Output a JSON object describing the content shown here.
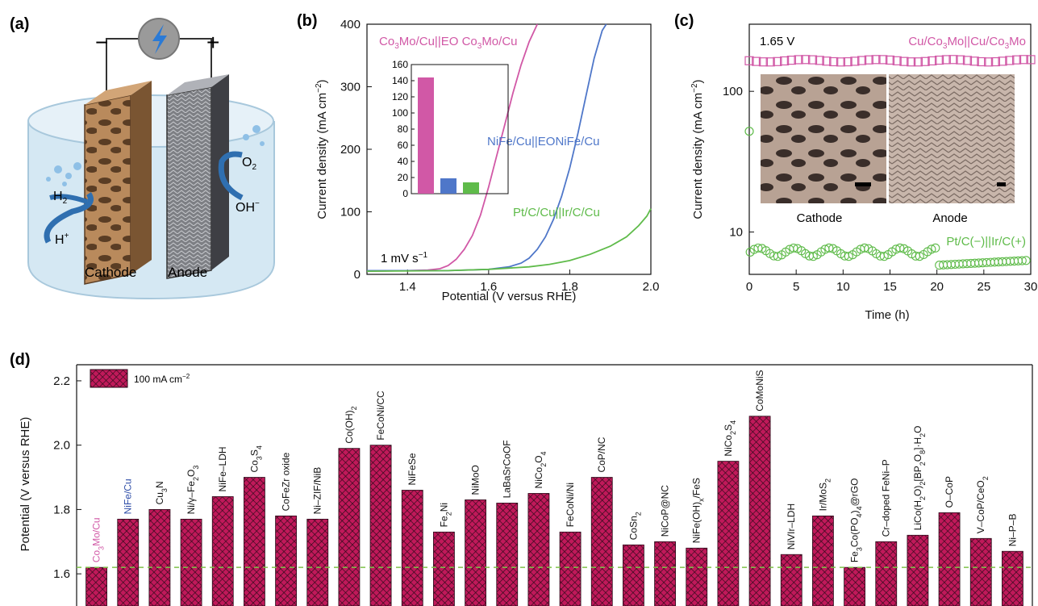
{
  "panel_labels": [
    "(a)",
    "(b)",
    "(c)",
    "(d)"
  ],
  "colors": {
    "magenta": "#d158a6",
    "blue": "#4f77c9",
    "green": "#5fbb4a",
    "bar_fill": "#c0195a",
    "dashed_ref": "#7fc24a",
    "electrolyte": "#cfe4f1"
  },
  "panel_a": {
    "cathode_label": "Cathode",
    "anode_label": "Anode",
    "minus_sign": "−",
    "plus_sign": "+",
    "species": {
      "h2": "H",
      "h2_sub": "2",
      "hplus": "H",
      "hplus_sup": "+",
      "o2": "O",
      "o2_sub": "2",
      "oh": "OH",
      "oh_sup": "−"
    },
    "icons": [
      "power-source-icon",
      "lightning-bolt-icon",
      "cathode-electrode-icon",
      "anode-electrode-icon",
      "gas-bubbles-icon"
    ]
  },
  "chart_data": [
    {
      "id": "b",
      "type": "line",
      "xlabel": "Potential (V versus RHE)",
      "ylabel": "Current density (mA cm",
      "ylabel_sup": "−2",
      "ylabel_end": ")",
      "xlim": [
        1.3,
        2.0
      ],
      "ylim": [
        0,
        400
      ],
      "xticks": [
        "1.4",
        "1.6",
        "1.8",
        "2.0"
      ],
      "yticks": [
        "0",
        "100",
        "200",
        "300",
        "400"
      ],
      "annotation": "1 mV s",
      "annotation_sup": "−1",
      "series": [
        {
          "name": "Co3Mo/Cu||EO Co3Mo/Cu",
          "color": "#d158a6",
          "x": [
            1.3,
            1.4,
            1.45,
            1.48,
            1.5,
            1.52,
            1.54,
            1.56,
            1.58,
            1.6,
            1.62,
            1.64,
            1.66,
            1.68,
            1.7,
            1.72
          ],
          "y": [
            5,
            6,
            7,
            9,
            14,
            24,
            40,
            62,
            95,
            140,
            190,
            240,
            290,
            335,
            372,
            400
          ]
        },
        {
          "name": "NiFe/Cu||EONiFe/Cu",
          "color": "#4f77c9",
          "x": [
            1.3,
            1.5,
            1.6,
            1.65,
            1.68,
            1.7,
            1.72,
            1.74,
            1.76,
            1.78,
            1.8,
            1.82,
            1.84,
            1.86,
            1.88,
            1.89
          ],
          "y": [
            6,
            6,
            8,
            12,
            18,
            26,
            40,
            60,
            88,
            125,
            170,
            225,
            285,
            345,
            390,
            400
          ]
        },
        {
          "name": "Pt/C/Cu||Ir/C/Cu",
          "color": "#5fbb4a",
          "x": [
            1.3,
            1.5,
            1.6,
            1.7,
            1.75,
            1.8,
            1.85,
            1.9,
            1.94,
            1.97,
            1.99,
            2.0
          ],
          "y": [
            5,
            6,
            8,
            12,
            16,
            22,
            32,
            45,
            60,
            78,
            93,
            105
          ]
        }
      ],
      "labels": {
        "magenta_name": "Co",
        "magenta_sub1": "3",
        "magenta_mid": "Mo/Cu||EO Co",
        "magenta_sub2": "3",
        "magenta_end": "Mo/Cu",
        "blue_text": "NiFe/Cu||EONiFe/Cu",
        "green_text": "Pt/C/Cu||Ir/C/Cu"
      },
      "inset": {
        "type": "bar",
        "ylim": [
          0,
          160
        ],
        "yticks": [
          "0",
          "20",
          "40",
          "60",
          "80",
          "100",
          "120",
          "140",
          "160"
        ],
        "values": [
          144,
          19,
          14
        ],
        "colors": [
          "#d158a6",
          "#4f77c9",
          "#5fbb4a"
        ]
      }
    },
    {
      "id": "c",
      "type": "scatter",
      "xlabel": "Time (h)",
      "ylabel": "Current density (mA cm",
      "ylabel_sup": "−2",
      "ylabel_end": ")",
      "xlim": [
        0,
        30
      ],
      "ylim_log": [
        5,
        300
      ],
      "yscale": "log",
      "xticks": [
        "0",
        "5",
        "10",
        "15",
        "20",
        "25",
        "30"
      ],
      "yticks": [
        {
          "label": "10",
          "value": 10
        },
        {
          "label": "100",
          "value": 100
        }
      ],
      "voltage_label": "1.65 V",
      "series": [
        {
          "name": "Cu/Co3Mo||Cu/Co3Mo",
          "color": "#d158a6",
          "marker": "square",
          "level": 165
        },
        {
          "name": "Pt/C(−)||Ir/C(+)",
          "color": "#5fbb4a",
          "marker": "circle",
          "first_point": 52,
          "level": 7.2
        }
      ],
      "labels": {
        "magenta_a": "Cu/Co",
        "magenta_s1": "3",
        "magenta_b": "Mo||Cu/Co",
        "magenta_s2": "3",
        "magenta_c": "Mo",
        "green_text": "Pt/C(−)||Ir/C(+)"
      },
      "inset_labels": {
        "cathode": "Cathode",
        "anode": "Anode"
      }
    },
    {
      "id": "d",
      "type": "bar",
      "ylabel": "Potential (V versus RHE)",
      "ylim": [
        1.5,
        2.25
      ],
      "yticks": [
        "1.6",
        "1.8",
        "2.0",
        "2.2"
      ],
      "legend": "100 mA cm",
      "legend_sup": "−2",
      "reference_line": 1.62,
      "categories": [
        {
          "html": "Co<tspan baseline-shift='sub' font-size='9'>3</tspan>Mo/Cu",
          "color": "#d158a6",
          "value": 1.62
        },
        {
          "html": "NiFe/Cu",
          "color": "#2f4ea8",
          "value": 1.77
        },
        {
          "html": "Cu<tspan baseline-shift='sub' font-size='9'>3</tspan>N",
          "color": "#111",
          "value": 1.8
        },
        {
          "html": "Ni/γ–Fe<tspan baseline-shift='sub' font-size='9'>2</tspan>O<tspan baseline-shift='sub' font-size='9'>3</tspan>",
          "color": "#111",
          "value": 1.77
        },
        {
          "html": "NiFe–LDH",
          "color": "#111",
          "value": 1.84
        },
        {
          "html": "Co<tspan baseline-shift='sub' font-size='9'>3</tspan>S<tspan baseline-shift='sub' font-size='9'>4</tspan>",
          "color": "#111",
          "value": 1.9
        },
        {
          "html": "CoFeZr oxide",
          "color": "#111",
          "value": 1.78
        },
        {
          "html": "Ni–ZIF/NiB",
          "color": "#111",
          "value": 1.77
        },
        {
          "html": "Co(OH)<tspan baseline-shift='sub' font-size='9'>2</tspan>",
          "color": "#111",
          "value": 1.99
        },
        {
          "html": "FeCoNi/CC",
          "color": "#111",
          "value": 2.0
        },
        {
          "html": "NiFeSe",
          "color": "#111",
          "value": 1.86
        },
        {
          "html": "Fe<tspan baseline-shift='sub' font-size='9'>2</tspan>Ni",
          "color": "#111",
          "value": 1.73
        },
        {
          "html": "NiMoO",
          "color": "#111",
          "value": 1.83
        },
        {
          "html": "LaBaSrCoOF",
          "color": "#111",
          "value": 1.82
        },
        {
          "html": "NiCo<tspan baseline-shift='sub' font-size='9'>2</tspan>O<tspan baseline-shift='sub' font-size='9'>4</tspan>",
          "color": "#111",
          "value": 1.85
        },
        {
          "html": "FeCoNi/Ni",
          "color": "#111",
          "value": 1.73
        },
        {
          "html": "CoP/NC",
          "color": "#111",
          "value": 1.9
        },
        {
          "html": "CoSn<tspan baseline-shift='sub' font-size='9'>2</tspan>",
          "color": "#111",
          "value": 1.69
        },
        {
          "html": "NiCoP@NC",
          "color": "#111",
          "value": 1.7
        },
        {
          "html": "NiFe(OH)<tspan baseline-shift='sub' font-size='9'>x</tspan>/FeS",
          "color": "#111",
          "value": 1.68
        },
        {
          "html": "NiCo<tspan baseline-shift='sub' font-size='9'>2</tspan>S<tspan baseline-shift='sub' font-size='9'>4</tspan>",
          "color": "#111",
          "value": 1.95
        },
        {
          "html": "CoMoNiS",
          "color": "#111",
          "value": 2.09
        },
        {
          "html": "NiVIr–LDH",
          "color": "#111",
          "value": 1.66
        },
        {
          "html": "Ir/MoS<tspan baseline-shift='sub' font-size='9'>2</tspan>",
          "color": "#111",
          "value": 1.78
        },
        {
          "html": "Fe<tspan baseline-shift='sub' font-size='9'>3</tspan>Co(PO<tspan baseline-shift='sub' font-size='9'>4</tspan>)<tspan baseline-shift='sub' font-size='9'>4</tspan>@rGO",
          "color": "#111",
          "value": 1.62
        },
        {
          "html": "Cr–doped FeNi–P",
          "color": "#111",
          "value": 1.7
        },
        {
          "html": "LiCo(H<tspan baseline-shift='sub' font-size='9'>2</tspan>O)<tspan baseline-shift='sub' font-size='9'>2</tspan>[BP<tspan baseline-shift='sub' font-size='9'>2</tspan>O<tspan baseline-shift='sub' font-size='9'>8</tspan>]·H<tspan baseline-shift='sub' font-size='9'>2</tspan>O",
          "color": "#111",
          "value": 1.72
        },
        {
          "html": "O–CoP",
          "color": "#111",
          "value": 1.79
        },
        {
          "html": "V–CoP/CeO<tspan baseline-shift='sub' font-size='9'>2</tspan>",
          "color": "#111",
          "value": 1.71
        },
        {
          "html": "Ni–P–B",
          "color": "#111",
          "value": 1.67
        }
      ]
    }
  ]
}
